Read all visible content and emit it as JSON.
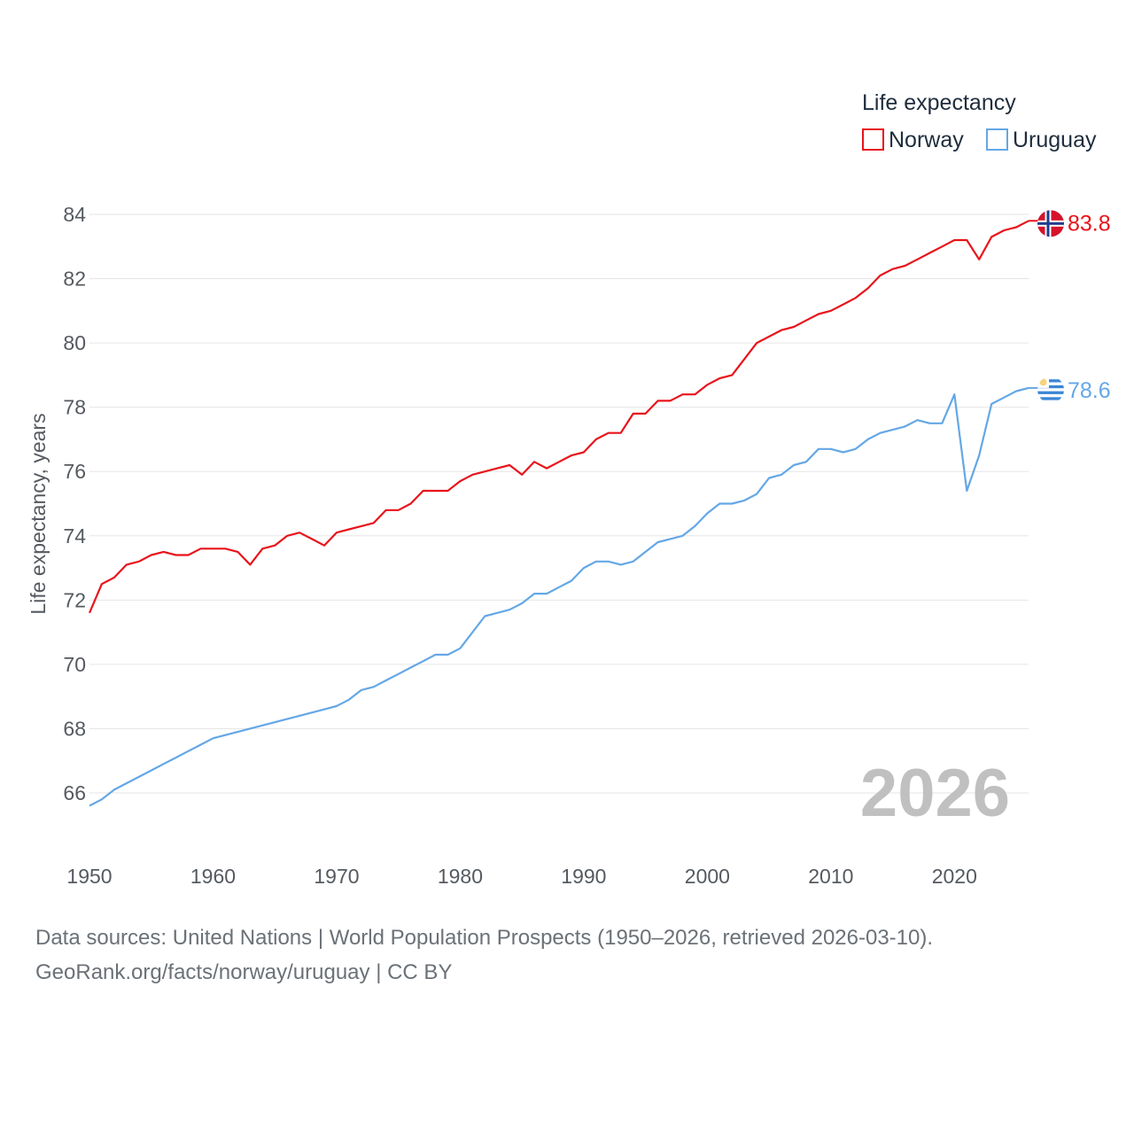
{
  "chart_data": {
    "type": "line",
    "legend_title": "Life expectancy",
    "ylabel": "Life expectancy, years",
    "ylim": [
      64,
      85
    ],
    "yticks": [
      66,
      68,
      70,
      72,
      74,
      76,
      78,
      80,
      82,
      84
    ],
    "xlim": [
      1950,
      2026
    ],
    "xticks": [
      1950,
      1960,
      1970,
      1980,
      1990,
      2000,
      2010,
      2020
    ],
    "year_label": "2026",
    "series": [
      {
        "name": "Norway",
        "color": "#e8141b",
        "end_label": "83.8",
        "flag": "norway-flag",
        "x": [
          1950,
          1951,
          1952,
          1953,
          1954,
          1955,
          1956,
          1957,
          1958,
          1959,
          1960,
          1961,
          1962,
          1963,
          1964,
          1965,
          1966,
          1967,
          1968,
          1969,
          1970,
          1971,
          1972,
          1973,
          1974,
          1975,
          1976,
          1977,
          1978,
          1979,
          1980,
          1981,
          1982,
          1983,
          1984,
          1985,
          1986,
          1987,
          1988,
          1989,
          1990,
          1991,
          1992,
          1993,
          1994,
          1995,
          1996,
          1997,
          1998,
          1999,
          2000,
          2001,
          2002,
          2003,
          2004,
          2005,
          2006,
          2007,
          2008,
          2009,
          2010,
          2011,
          2012,
          2013,
          2014,
          2015,
          2016,
          2017,
          2018,
          2019,
          2020,
          2021,
          2022,
          2023,
          2024,
          2025,
          2026
        ],
        "values": [
          71.6,
          72.5,
          72.7,
          73.1,
          73.2,
          73.4,
          73.5,
          73.4,
          73.4,
          73.6,
          73.6,
          73.6,
          73.5,
          73.1,
          73.6,
          73.7,
          74.0,
          74.1,
          73.9,
          73.7,
          74.1,
          74.2,
          74.3,
          74.4,
          74.8,
          74.8,
          75.0,
          75.4,
          75.4,
          75.4,
          75.7,
          75.9,
          76.0,
          76.1,
          76.2,
          75.9,
          76.3,
          76.1,
          76.3,
          76.5,
          76.6,
          77.0,
          77.2,
          77.2,
          77.8,
          77.8,
          78.2,
          78.2,
          78.4,
          78.4,
          78.7,
          78.9,
          79.0,
          79.5,
          80.0,
          80.2,
          80.4,
          80.5,
          80.7,
          80.9,
          81.0,
          81.2,
          81.4,
          81.7,
          82.1,
          82.3,
          82.4,
          82.6,
          82.8,
          83.0,
          83.2,
          83.2,
          82.6,
          83.3,
          83.5,
          83.6,
          83.8
        ]
      },
      {
        "name": "Uruguay",
        "color": "#64a7e6",
        "end_label": "78.6",
        "flag": "uruguay-flag",
        "x": [
          1950,
          1951,
          1952,
          1953,
          1954,
          1955,
          1956,
          1957,
          1958,
          1959,
          1960,
          1961,
          1962,
          1963,
          1964,
          1965,
          1966,
          1967,
          1968,
          1969,
          1970,
          1971,
          1972,
          1973,
          1974,
          1975,
          1976,
          1977,
          1978,
          1979,
          1980,
          1981,
          1982,
          1983,
          1984,
          1985,
          1986,
          1987,
          1988,
          1989,
          1990,
          1991,
          1992,
          1993,
          1994,
          1995,
          1996,
          1997,
          1998,
          1999,
          2000,
          2001,
          2002,
          2003,
          2004,
          2005,
          2006,
          2007,
          2008,
          2009,
          2010,
          2011,
          2012,
          2013,
          2014,
          2015,
          2016,
          2017,
          2018,
          2019,
          2020,
          2021,
          2022,
          2023,
          2024,
          2025,
          2026
        ],
        "values": [
          65.6,
          65.8,
          66.1,
          66.3,
          66.5,
          66.7,
          66.9,
          67.1,
          67.3,
          67.5,
          67.7,
          67.8,
          67.9,
          68.0,
          68.1,
          68.2,
          68.3,
          68.4,
          68.5,
          68.6,
          68.7,
          68.9,
          69.2,
          69.3,
          69.5,
          69.7,
          69.9,
          70.1,
          70.3,
          70.3,
          70.5,
          71.0,
          71.5,
          71.6,
          71.7,
          71.9,
          72.2,
          72.2,
          72.4,
          72.6,
          73.0,
          73.2,
          73.2,
          73.1,
          73.2,
          73.5,
          73.8,
          73.9,
          74.0,
          74.3,
          74.7,
          75.0,
          75.0,
          75.1,
          75.3,
          75.8,
          75.9,
          76.2,
          76.3,
          76.7,
          76.7,
          76.6,
          76.7,
          77.0,
          77.2,
          77.3,
          77.4,
          77.6,
          77.5,
          77.5,
          78.4,
          75.4,
          76.5,
          78.1,
          78.3,
          78.5,
          78.6
        ]
      }
    ]
  },
  "footer": {
    "line1": "Data sources: United Nations | World Population Prospects (1950–2026, retrieved 2026-03-10).",
    "line2": "GeoRank.org/facts/norway/uruguay | CC BY"
  }
}
